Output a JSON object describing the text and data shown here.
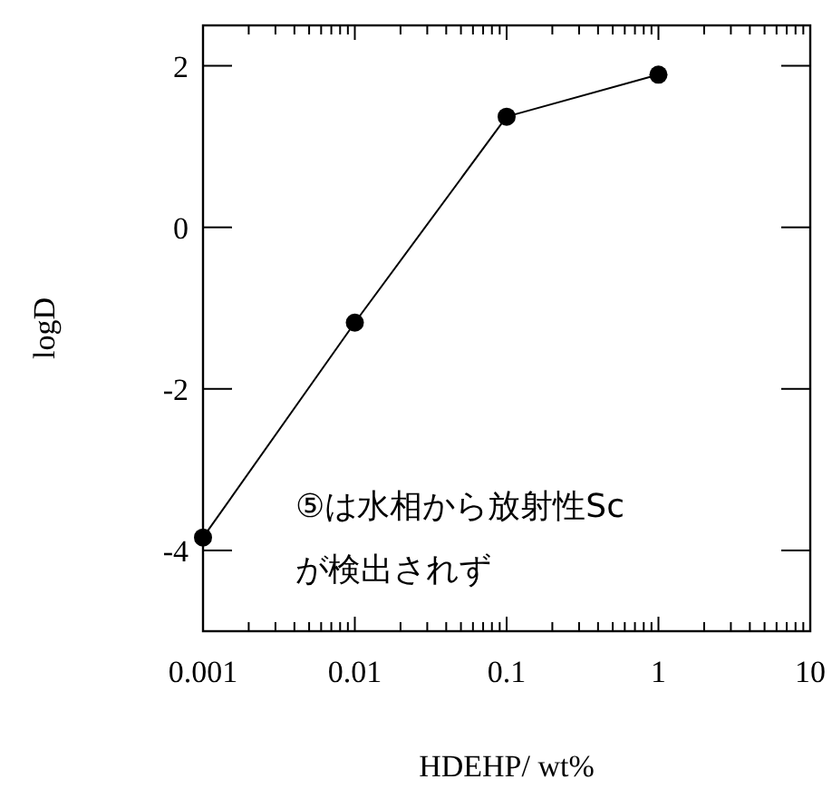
{
  "chart_data": {
    "type": "line",
    "xlabel": "HDEHP/ wt%",
    "ylabel": "logD",
    "x": [
      0.001,
      0.01,
      0.1,
      1
    ],
    "series": [
      {
        "color": "#000000",
        "values": [
          -3.84,
          -1.18,
          1.37,
          1.89
        ]
      }
    ],
    "log": "x",
    "xlim": [
      0.001,
      10
    ],
    "xticks": [
      0.001,
      0.01,
      0.1,
      1,
      10
    ],
    "ylim": [
      -5,
      2.5
    ],
    "yticks": [
      -4,
      -2,
      0,
      2
    ],
    "marker": "circle",
    "line_style": "solid",
    "grid": false,
    "annotations": [
      "⑤は水相から放射性Sc\nが検出されず"
    ]
  }
}
